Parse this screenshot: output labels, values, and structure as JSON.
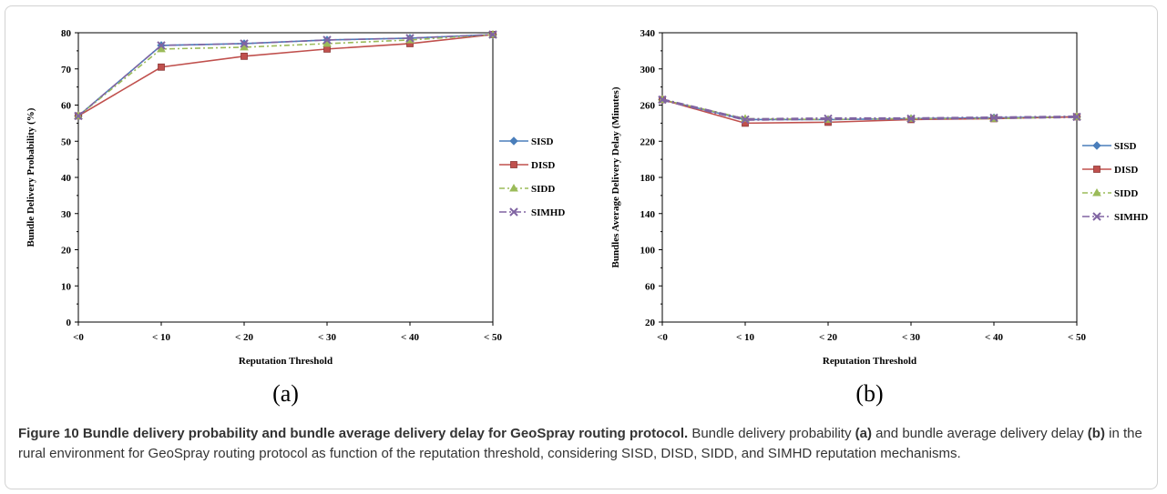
{
  "chart_data": [
    {
      "type": "line",
      "panel_label": "(a)",
      "xlabel": "Reputation Threshold",
      "ylabel": "Bundle Delivery Probability (%)",
      "categories": [
        "<0",
        "< 10",
        "< 20",
        "< 30",
        "< 40",
        "< 50"
      ],
      "ylim": [
        0,
        80
      ],
      "yticks": [
        0,
        10,
        20,
        30,
        40,
        50,
        60,
        70,
        80
      ],
      "grid": false,
      "legend": "right",
      "series": [
        {
          "name": "SISD",
          "color": "#4a7ebb",
          "marker": "diamond",
          "dash": "",
          "values": [
            57,
            76.5,
            77,
            78,
            78.5,
            79.5
          ]
        },
        {
          "name": "DISD",
          "color": "#c0504d",
          "marker": "square",
          "dash": "",
          "values": [
            57,
            70.5,
            73.5,
            75.5,
            77,
            79.5
          ]
        },
        {
          "name": "SIDD",
          "color": "#9bbb59",
          "marker": "triangle",
          "dash": "6,3,2,3",
          "values": [
            57,
            75.5,
            76,
            77,
            78,
            79.5
          ]
        },
        {
          "name": "SIMHD",
          "color": "#8064a2",
          "marker": "x",
          "dash": "8,3,2,3",
          "values": [
            57,
            76.5,
            77,
            78,
            78.5,
            79.5
          ]
        }
      ]
    },
    {
      "type": "line",
      "panel_label": "(b)",
      "xlabel": "Reputation Threshold",
      "ylabel": "Bundles Average Delivery Delay (Minutes)",
      "categories": [
        "<0",
        "< 10",
        "< 20",
        "< 30",
        "< 40",
        "< 50"
      ],
      "ylim": [
        20,
        340
      ],
      "yticks": [
        20,
        60,
        100,
        140,
        180,
        220,
        260,
        300,
        340
      ],
      "grid": false,
      "legend": "right",
      "series": [
        {
          "name": "SISD",
          "color": "#4a7ebb",
          "marker": "diamond",
          "dash": "",
          "values": [
            266,
            244,
            244,
            245,
            246,
            247
          ]
        },
        {
          "name": "DISD",
          "color": "#c0504d",
          "marker": "square",
          "dash": "",
          "values": [
            266,
            240,
            241,
            244,
            245,
            247
          ]
        },
        {
          "name": "SIDD",
          "color": "#9bbb59",
          "marker": "triangle",
          "dash": "6,3,2,3",
          "values": [
            266,
            245,
            244,
            245,
            245,
            247
          ]
        },
        {
          "name": "SIMHD",
          "color": "#8064a2",
          "marker": "x",
          "dash": "8,3,2,3",
          "values": [
            266,
            244,
            245,
            245,
            246,
            247
          ]
        }
      ]
    }
  ],
  "caption": {
    "title": "Figure 10 Bundle delivery probability and bundle average delivery delay for GeoSpray routing protocol.",
    "part1": " Bundle delivery probability ",
    "label_a": "(a)",
    "part2": " and bundle average delivery delay ",
    "label_b": "(b)",
    "part3": " in the rural environment for GeoSpray routing protocol as function of the reputation threshold, considering SISD, DISD, SIDD, and SIMHD reputation mechanisms."
  }
}
